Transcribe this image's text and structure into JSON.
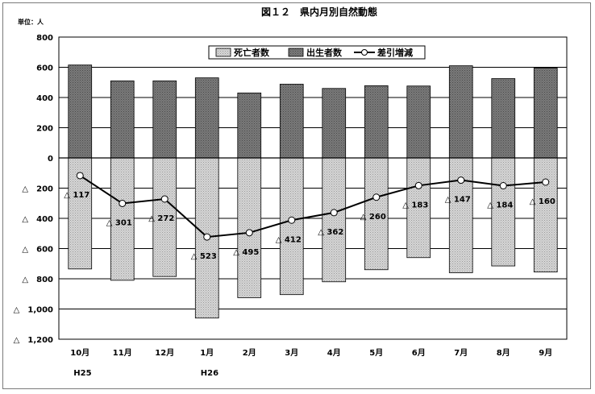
{
  "chart_data": {
    "type": "bar",
    "title": "図１２　県内月別自然動態",
    "unit_label": "単位：人",
    "categories": [
      "10月",
      "11月",
      "12月",
      "1月",
      "2月",
      "3月",
      "4月",
      "5月",
      "6月",
      "7月",
      "8月",
      "9月"
    ],
    "year_labels": [
      {
        "index": 0,
        "label": "H25"
      },
      {
        "index": 3,
        "label": "H26"
      }
    ],
    "ylim": [
      -1200,
      800
    ],
    "ytick_values": [
      800,
      600,
      400,
      200,
      0,
      -200,
      -400,
      -600,
      -800,
      -1000,
      -1200
    ],
    "ytick_labels": [
      "800",
      "600",
      "400",
      "200",
      "0",
      "△　200",
      "△　400",
      "△　600",
      "△　800",
      "△　1,000",
      "△　1,200"
    ],
    "grid": true,
    "legend_position": "top-center",
    "series": [
      {
        "name": "死亡者数",
        "kind": "bar",
        "values": [
          -735,
          -810,
          -785,
          -1060,
          -925,
          -905,
          -820,
          -740,
          -660,
          -760,
          -715,
          -755
        ],
        "color": "#c8c8c8"
      },
      {
        "name": "出生者数",
        "kind": "bar",
        "values": [
          615,
          510,
          510,
          530,
          430,
          488,
          460,
          478,
          476,
          610,
          525,
          595
        ],
        "color": "#6e6e6e"
      },
      {
        "name": "差引増減",
        "kind": "line",
        "values": [
          -117,
          -301,
          -272,
          -523,
          -495,
          -412,
          -362,
          -260,
          -183,
          -147,
          -184,
          -160
        ],
        "color": "#000000"
      }
    ],
    "data_labels": [
      "△ 117",
      "△ 301",
      "△ 272",
      "△ 523",
      "△ 495",
      "△ 412",
      "△ 362",
      "△ 260",
      "△ 183",
      "△ 147",
      "△ 184",
      "△ 160"
    ]
  }
}
